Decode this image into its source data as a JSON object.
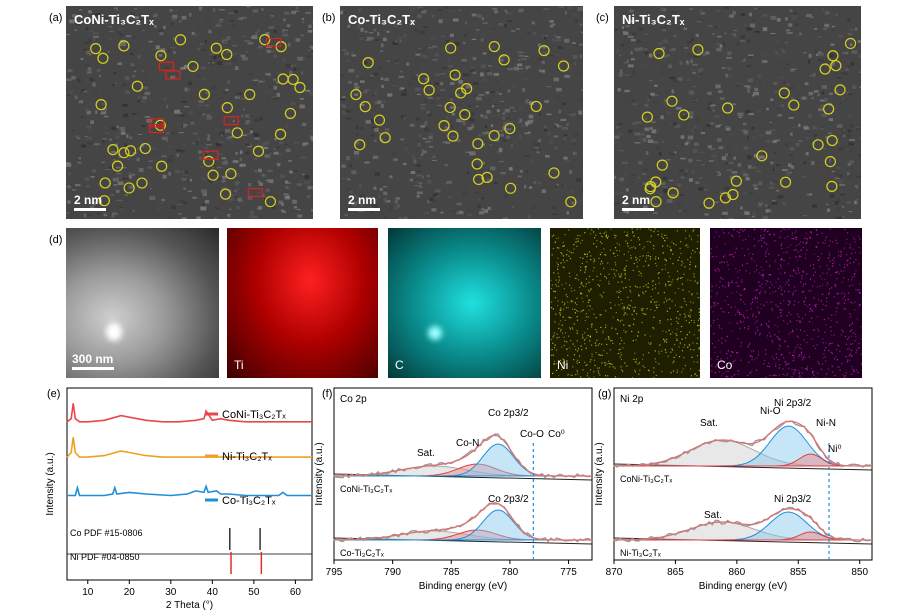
{
  "panels": {
    "a": {
      "letter": "(a)",
      "title": "CoNi-Ti₃C₂Tₓ",
      "scale": "2 nm"
    },
    "b": {
      "letter": "(b)",
      "title": "Co-Ti₃C₂Tₓ",
      "scale": "2 nm"
    },
    "c": {
      "letter": "(c)",
      "title": "Ni-Ti₃C₂Tₓ",
      "scale": "2 nm"
    },
    "d": {
      "letter": "(d)",
      "scale": "300 nm",
      "maps": [
        "Ti",
        "C",
        "Ni",
        "Co"
      ]
    },
    "e": {
      "letter": "(e)"
    },
    "f": {
      "letter": "(f)"
    },
    "g": {
      "letter": "(g)"
    }
  },
  "colors": {
    "CoNi": "#e8474b",
    "Ni": "#f0a020",
    "Co": "#1f8ed8",
    "ref_Co": "#333333",
    "ref_Ni": "#e0302a",
    "Ti_map": "#e01010",
    "C_map": "#10c8c8",
    "Ni_map": "#c8c820",
    "Co_map": "#c020c0"
  },
  "chart_data": [
    {
      "type": "line",
      "panel": "e",
      "xlabel": "2 Theta (°)",
      "ylabel": "Intensity (a.u.)",
      "xlim": [
        5,
        64
      ],
      "xticks": [
        "10",
        "20",
        "30",
        "40",
        "50",
        "60"
      ],
      "series": [
        {
          "name": "CoNi-Ti₃C₂Tₓ",
          "color": "#e8474b",
          "x": [
            5,
            6,
            6.5,
            7,
            8,
            10,
            14,
            18,
            20,
            24,
            28,
            32,
            36,
            38,
            38.5,
            40,
            42,
            44,
            48,
            52,
            56,
            60,
            64
          ],
          "y": [
            0.78,
            0.8,
            0.9,
            0.8,
            0.78,
            0.78,
            0.79,
            0.82,
            0.81,
            0.79,
            0.78,
            0.78,
            0.79,
            0.8,
            0.85,
            0.79,
            0.8,
            0.79,
            0.78,
            0.78,
            0.78,
            0.78,
            0.78
          ]
        },
        {
          "name": "Ni-Ti₃C₂Tₓ",
          "color": "#f0a020",
          "x": [
            5,
            6,
            6.5,
            7,
            8,
            10,
            14,
            18,
            20,
            24,
            28,
            32,
            36,
            40,
            44,
            48,
            52,
            56,
            60,
            64
          ],
          "y": [
            0.55,
            0.58,
            0.68,
            0.58,
            0.55,
            0.55,
            0.56,
            0.59,
            0.58,
            0.56,
            0.55,
            0.55,
            0.55,
            0.55,
            0.55,
            0.55,
            0.55,
            0.55,
            0.55,
            0.55
          ]
        },
        {
          "name": "Co-Ti₃C₂Tₓ",
          "color": "#1f8ed8",
          "x": [
            5,
            7,
            7.5,
            8,
            10,
            14,
            16,
            16.5,
            17,
            20,
            24,
            30,
            34,
            36,
            38,
            38.5,
            39,
            41,
            42,
            44,
            48,
            52,
            56,
            57,
            58,
            60,
            64
          ],
          "y": [
            0.3,
            0.3,
            0.35,
            0.3,
            0.3,
            0.3,
            0.31,
            0.35,
            0.31,
            0.32,
            0.31,
            0.3,
            0.31,
            0.33,
            0.32,
            0.36,
            0.32,
            0.33,
            0.31,
            0.31,
            0.3,
            0.3,
            0.3,
            0.32,
            0.3,
            0.3,
            0.3
          ]
        }
      ],
      "references": [
        {
          "name": "Co PDF #15-0806",
          "color": "#333333",
          "positions": [
            44.2,
            51.5
          ]
        },
        {
          "name": "Ni PDF #04-0850",
          "color": "#e0302a",
          "positions": [
            44.5,
            51.8
          ]
        }
      ]
    },
    {
      "type": "line",
      "panel": "f",
      "title": "Co 2p",
      "xlabel": "Binding energy (eV)",
      "ylabel": "Intensity (a.u.)",
      "xlim": [
        795,
        773
      ],
      "xticks": [
        "795",
        "790",
        "785",
        "780",
        "775"
      ],
      "samples": [
        "CoNi-Ti₃C₂Tₓ",
        "Co-Ti₃C₂Tₓ"
      ],
      "annotations": [
        "Sat.",
        "Co-N",
        "Co 2p3/2",
        "Co-O",
        "Co⁰",
        "Co 2p3/2"
      ],
      "peaks": {
        "Co-O": 781.0,
        "Co-N": 782.8,
        "Sat.": 786.5,
        "Co0": 778.0
      }
    },
    {
      "type": "line",
      "panel": "g",
      "title": "Ni 2p",
      "xlabel": "Binding energy (eV)",
      "ylabel": "Intensity (a.u.)",
      "xlim": [
        870,
        849
      ],
      "xticks": [
        "870",
        "865",
        "860",
        "855",
        "850"
      ],
      "samples": [
        "CoNi-Ti₃C₂Tₓ",
        "Ni-Ti₃C₂Tₓ"
      ],
      "annotations": [
        "Sat.",
        "Ni-O",
        "Ni 2p3/2",
        "Ni-N",
        "Ni⁰",
        "Sat.",
        "Ni 2p3/2"
      ],
      "peaks": {
        "Ni-O": 855.8,
        "Ni-N": 854.5,
        "Sat.": 861.2,
        "Ni0": 852.5
      }
    }
  ]
}
